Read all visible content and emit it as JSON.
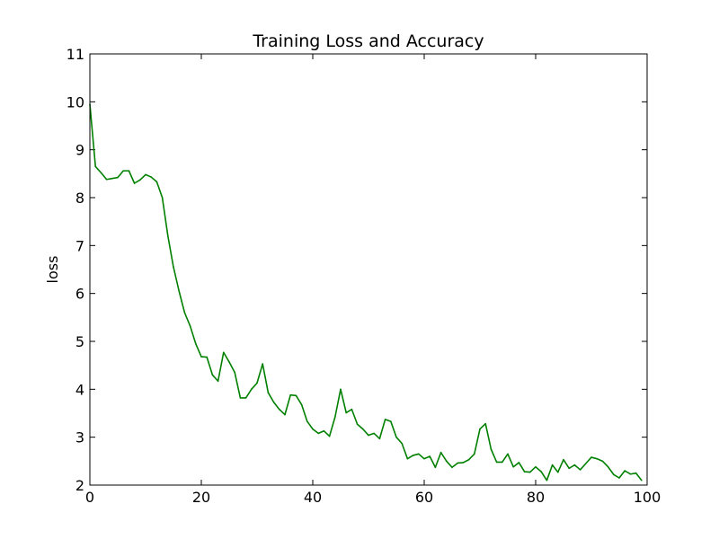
{
  "chart_data": {
    "type": "line",
    "title": "Training Loss and Accuracy",
    "xlabel": "",
    "ylabel": "loss",
    "xlim": [
      0,
      100
    ],
    "ylim": [
      2,
      11
    ],
    "xticks": [
      0,
      20,
      40,
      60,
      80,
      100
    ],
    "yticks": [
      2,
      3,
      4,
      5,
      6,
      7,
      8,
      9,
      10,
      11
    ],
    "grid": false,
    "legend": "none",
    "series": [
      {
        "color": "#008000",
        "x": [
          0,
          1,
          2,
          3,
          4,
          5,
          6,
          7,
          8,
          9,
          10,
          11,
          12,
          13,
          14,
          15,
          16,
          17,
          18,
          19,
          20,
          21,
          22,
          23,
          24,
          25,
          26,
          27,
          28,
          29,
          30,
          31,
          32,
          33,
          34,
          35,
          36,
          37,
          38,
          39,
          40,
          41,
          42,
          43,
          44,
          45,
          46,
          47,
          48,
          49,
          50,
          51,
          52,
          53,
          54,
          55,
          56,
          57,
          58,
          59,
          60,
          61,
          62,
          63,
          64,
          65,
          66,
          67,
          68,
          69,
          70,
          71,
          72,
          73,
          74,
          75,
          76,
          77,
          78,
          79,
          80,
          81,
          82,
          83,
          84,
          85,
          86,
          87,
          88,
          89,
          90,
          91,
          92,
          93,
          94,
          95,
          96,
          97,
          98,
          99
        ],
        "values": [
          9.95,
          8.65,
          8.52,
          8.38,
          8.4,
          8.42,
          8.56,
          8.56,
          8.3,
          8.37,
          8.48,
          8.43,
          8.33,
          8.0,
          7.2,
          6.55,
          6.05,
          5.6,
          5.32,
          4.95,
          4.68,
          4.67,
          4.3,
          4.17,
          4.77,
          4.57,
          4.35,
          3.82,
          3.82,
          4.0,
          4.13,
          4.53,
          3.93,
          3.73,
          3.58,
          3.47,
          3.88,
          3.87,
          3.68,
          3.33,
          3.17,
          3.08,
          3.13,
          3.02,
          3.42,
          4.0,
          3.51,
          3.58,
          3.27,
          3.17,
          3.04,
          3.08,
          2.97,
          3.37,
          3.33,
          3.0,
          2.87,
          2.55,
          2.62,
          2.65,
          2.55,
          2.6,
          2.37,
          2.68,
          2.5,
          2.37,
          2.46,
          2.47,
          2.53,
          2.65,
          3.17,
          3.28,
          2.75,
          2.48,
          2.48,
          2.65,
          2.38,
          2.47,
          2.28,
          2.27,
          2.38,
          2.28,
          2.1,
          2.42,
          2.27,
          2.53,
          2.35,
          2.42,
          2.32,
          2.45,
          2.58,
          2.55,
          2.5,
          2.38,
          2.22,
          2.15,
          2.3,
          2.23,
          2.25,
          2.1
        ]
      }
    ]
  }
}
